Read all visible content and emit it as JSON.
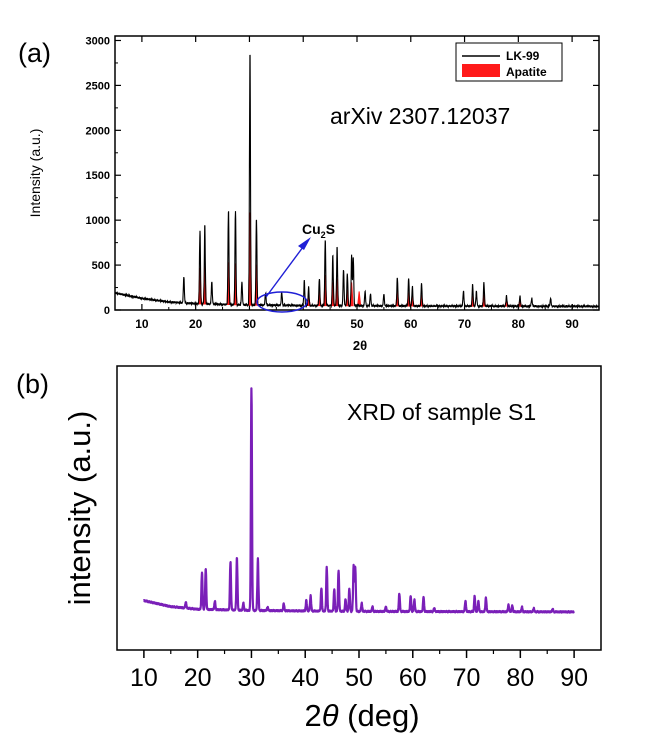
{
  "chart_data": [
    {
      "type": "line",
      "panel_label": "(a)",
      "annotation": "arXiv 2307.12037",
      "xlabel": "2θ",
      "ylabel": "Intensity (a.u.)",
      "xlim": [
        5,
        95
      ],
      "ylim": [
        0,
        3050
      ],
      "xticks": [
        10,
        20,
        30,
        40,
        50,
        60,
        70,
        80,
        90
      ],
      "yticks": [
        0,
        500,
        1000,
        1500,
        2000,
        2500,
        3000
      ],
      "legend": {
        "position": "top-right",
        "entries": [
          "LK-99",
          "Apatite"
        ]
      },
      "phase_label": {
        "main": "Cu",
        "sub": "2",
        "tail": "S"
      },
      "colors": {
        "lk99": "#000000",
        "apatite": "#ff0000",
        "arrow": "#1f1fd6"
      },
      "series": [
        {
          "name": "LK-99",
          "background": [
            [
              5,
              190
            ],
            [
              10,
              130
            ],
            [
              15,
              90
            ],
            [
              20,
              70
            ],
            [
              30,
              55
            ],
            [
              40,
              50
            ],
            [
              60,
              45
            ],
            [
              95,
              40
            ]
          ],
          "peaks": [
            [
              17.8,
              290
            ],
            [
              20.8,
              820
            ],
            [
              21.7,
              890
            ],
            [
              23.0,
              260
            ],
            [
              26.1,
              1050
            ],
            [
              27.4,
              1050
            ],
            [
              28.6,
              260
            ],
            [
              30.1,
              2860
            ],
            [
              31.3,
              970
            ],
            [
              33.0,
              140
            ],
            [
              36.0,
              150
            ],
            [
              40.2,
              280
            ],
            [
              41.0,
              210
            ],
            [
              43.0,
              300
            ],
            [
              44.1,
              730
            ],
            [
              45.5,
              570
            ],
            [
              46.3,
              660
            ],
            [
              47.5,
              400
            ],
            [
              48.2,
              360
            ],
            [
              49.0,
              560
            ],
            [
              49.3,
              540
            ],
            [
              51.5,
              160
            ],
            [
              52.5,
              130
            ],
            [
              55.0,
              130
            ],
            [
              57.5,
              320
            ],
            [
              59.6,
              310
            ],
            [
              60.3,
              220
            ],
            [
              62.0,
              250
            ],
            [
              69.8,
              170
            ],
            [
              71.5,
              240
            ],
            [
              72.2,
              170
            ],
            [
              73.6,
              270
            ],
            [
              77.8,
              120
            ],
            [
              80.3,
              110
            ],
            [
              82.5,
              90
            ],
            [
              86.0,
              90
            ]
          ]
        },
        {
          "name": "Apatite",
          "sticks": [
            [
              20.8,
              400
            ],
            [
              21.7,
              420
            ],
            [
              26.1,
              470
            ],
            [
              27.4,
              460
            ],
            [
              30.1,
              1030
            ],
            [
              31.3,
              450
            ],
            [
              41.0,
              110
            ],
            [
              43.0,
              160
            ],
            [
              44.1,
              340
            ],
            [
              45.5,
              260
            ],
            [
              46.3,
              300
            ],
            [
              48.2,
              180
            ],
            [
              49.0,
              260
            ],
            [
              50.4,
              160
            ],
            [
              57.5,
              180
            ],
            [
              59.6,
              150
            ],
            [
              60.3,
              110
            ],
            [
              62.0,
              120
            ],
            [
              71.5,
              110
            ],
            [
              73.6,
              130
            ],
            [
              77.8,
              80
            ],
            [
              80.3,
              70
            ]
          ]
        }
      ]
    },
    {
      "type": "line",
      "panel_label": "(b)",
      "annotation": "XRD of sample S1",
      "xlabel": "2θ (deg)",
      "ylabel": "intensity (a.u.)",
      "xlim": [
        5,
        95
      ],
      "ylim": [
        0,
        100
      ],
      "xticks": [
        10,
        20,
        30,
        40,
        50,
        60,
        70,
        80,
        90
      ],
      "colors": {
        "line": "#7a1fb8"
      },
      "series": [
        {
          "name": "XRD of sample S1",
          "background": [
            [
              10,
              6.0
            ],
            [
              15,
              3.5
            ],
            [
              20,
              2.4
            ],
            [
              30,
              1.9
            ],
            [
              50,
              1.5
            ],
            [
              90,
              1.3
            ]
          ],
          "peaks": [
            [
              17.8,
              2.5
            ],
            [
              20.8,
              15.5
            ],
            [
              21.5,
              17.0
            ],
            [
              23.2,
              3.5
            ],
            [
              26.1,
              20.0
            ],
            [
              27.3,
              22.0
            ],
            [
              28.5,
              3.0
            ],
            [
              30.0,
              92.5
            ],
            [
              31.2,
              21.5
            ],
            [
              33.0,
              1.5
            ],
            [
              36.0,
              3.0
            ],
            [
              40.2,
              4.5
            ],
            [
              41.0,
              6.5
            ],
            [
              43.0,
              9.5
            ],
            [
              44.0,
              18.5
            ],
            [
              45.4,
              9.0
            ],
            [
              46.2,
              17.0
            ],
            [
              47.5,
              5.0
            ],
            [
              48.2,
              9.5
            ],
            [
              49.0,
              19.0
            ],
            [
              49.3,
              18.5
            ],
            [
              50.5,
              3.5
            ],
            [
              52.5,
              2.0
            ],
            [
              55.0,
              2.0
            ],
            [
              57.5,
              7.5
            ],
            [
              59.6,
              6.5
            ],
            [
              60.3,
              5.0
            ],
            [
              62.0,
              6.0
            ],
            [
              64.0,
              1.5
            ],
            [
              69.8,
              4.5
            ],
            [
              71.5,
              6.5
            ],
            [
              72.2,
              4.5
            ],
            [
              73.6,
              6.0
            ],
            [
              77.8,
              3.0
            ],
            [
              78.5,
              2.5
            ],
            [
              80.3,
              2.0
            ],
            [
              82.5,
              1.5
            ],
            [
              86.0,
              1.2
            ]
          ]
        }
      ]
    }
  ]
}
